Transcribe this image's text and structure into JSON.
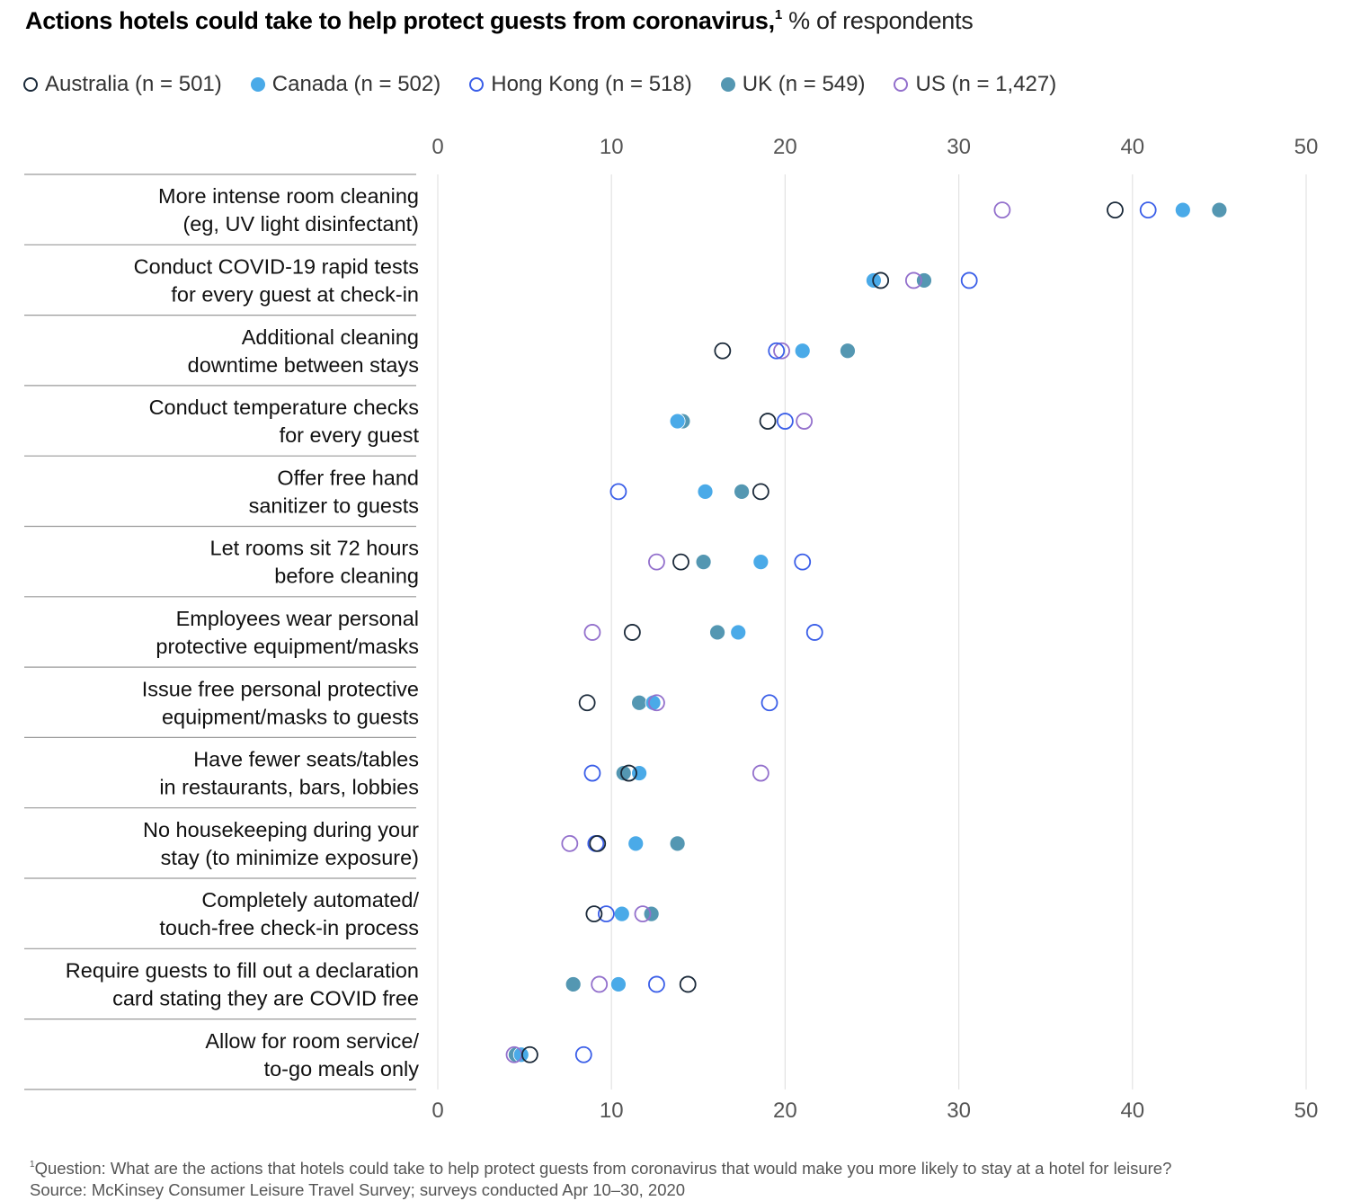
{
  "header": {
    "title_bold": "Actions hotels could take to help protect guests from coronavirus,",
    "title_footnote_mark": "1",
    "title_unit": " % of respondents"
  },
  "legend": [
    {
      "label": "Australia (n = 501)",
      "series": "Australia"
    },
    {
      "label": "Canada (n = 502)",
      "series": "Canada"
    },
    {
      "label": "Hong Kong (n = 518)",
      "series": "Hong Kong"
    },
    {
      "label": "UK (n = 549)",
      "series": "UK"
    },
    {
      "label": "US (n = 1,427)",
      "series": "US"
    }
  ],
  "series_style": {
    "Australia": {
      "color": "#1b2a3a",
      "filled": false
    },
    "Canada": {
      "color": "#4aaae8",
      "filled": true
    },
    "Hong Kong": {
      "color": "#3a5ee8",
      "filled": false
    },
    "UK": {
      "color": "#5497b2",
      "filled": true
    },
    "US": {
      "color": "#9370cc",
      "filled": false
    }
  },
  "footnote": {
    "mark": "1",
    "question": "Question: What are the actions that hotels could take to help protect guests from coronavirus that would make you more likely to stay at a hotel for leisure?",
    "source": "Source: McKinsey Consumer Leisure Travel Survey; surveys conducted Apr 10–30, 2020"
  },
  "chart_data": {
    "type": "scatter",
    "subtype": "dot-plot",
    "title": "Actions hotels could take to help protect guests from coronavirus, % of respondents",
    "xlabel": "% of respondents",
    "ylabel": "",
    "xlim": [
      0,
      50
    ],
    "xticks": [
      0,
      10,
      20,
      30,
      40,
      50
    ],
    "xtick_labels": [
      "0",
      "10",
      "20",
      "30",
      "40",
      "50"
    ],
    "grid": true,
    "legend_position": "top-left",
    "categories": [
      [
        "More intense room cleaning",
        "(eg, UV light disinfectant)"
      ],
      [
        "Conduct COVID-19 rapid tests",
        "for every guest at check-in"
      ],
      [
        "Additional cleaning",
        "downtime between stays"
      ],
      [
        "Conduct temperature checks",
        "for every guest"
      ],
      [
        "Offer free hand",
        "sanitizer to guests"
      ],
      [
        "Let rooms sit 72 hours",
        "before cleaning"
      ],
      [
        "Employees wear personal",
        "protective equipment/masks"
      ],
      [
        "Issue free personal protective",
        "equipment/masks to guests"
      ],
      [
        "Have fewer seats/tables",
        "in restaurants, bars, lobbies"
      ],
      [
        "No housekeeping during your",
        "stay (to minimize exposure)"
      ],
      [
        "Completely automated/",
        "touch-free check-in process"
      ],
      [
        "Require guests to fill out a declaration",
        "card stating they are COVID free"
      ],
      [
        "Allow for room service/",
        "to-go meals only"
      ]
    ],
    "series": [
      {
        "name": "Australia",
        "values": [
          39.0,
          25.5,
          16.4,
          19.0,
          18.6,
          14.0,
          11.2,
          8.6,
          11.0,
          9.2,
          9.0,
          14.4,
          5.3
        ]
      },
      {
        "name": "Canada",
        "values": [
          42.9,
          25.1,
          21.0,
          13.8,
          15.4,
          18.6,
          17.3,
          12.4,
          11.6,
          11.4,
          10.6,
          10.4,
          4.8
        ]
      },
      {
        "name": "Hong Kong",
        "values": [
          40.9,
          30.6,
          19.5,
          20.0,
          10.4,
          21.0,
          21.7,
          19.1,
          8.9,
          9.1,
          9.7,
          12.6,
          8.4
        ]
      },
      {
        "name": "UK",
        "values": [
          45.0,
          28.0,
          23.6,
          14.1,
          17.5,
          15.3,
          16.1,
          11.6,
          10.7,
          13.8,
          12.3,
          7.8,
          4.5
        ]
      },
      {
        "name": "US",
        "values": [
          32.5,
          27.4,
          19.8,
          21.1,
          null,
          12.6,
          8.9,
          12.6,
          18.6,
          7.6,
          11.8,
          9.3,
          4.4
        ]
      }
    ]
  }
}
